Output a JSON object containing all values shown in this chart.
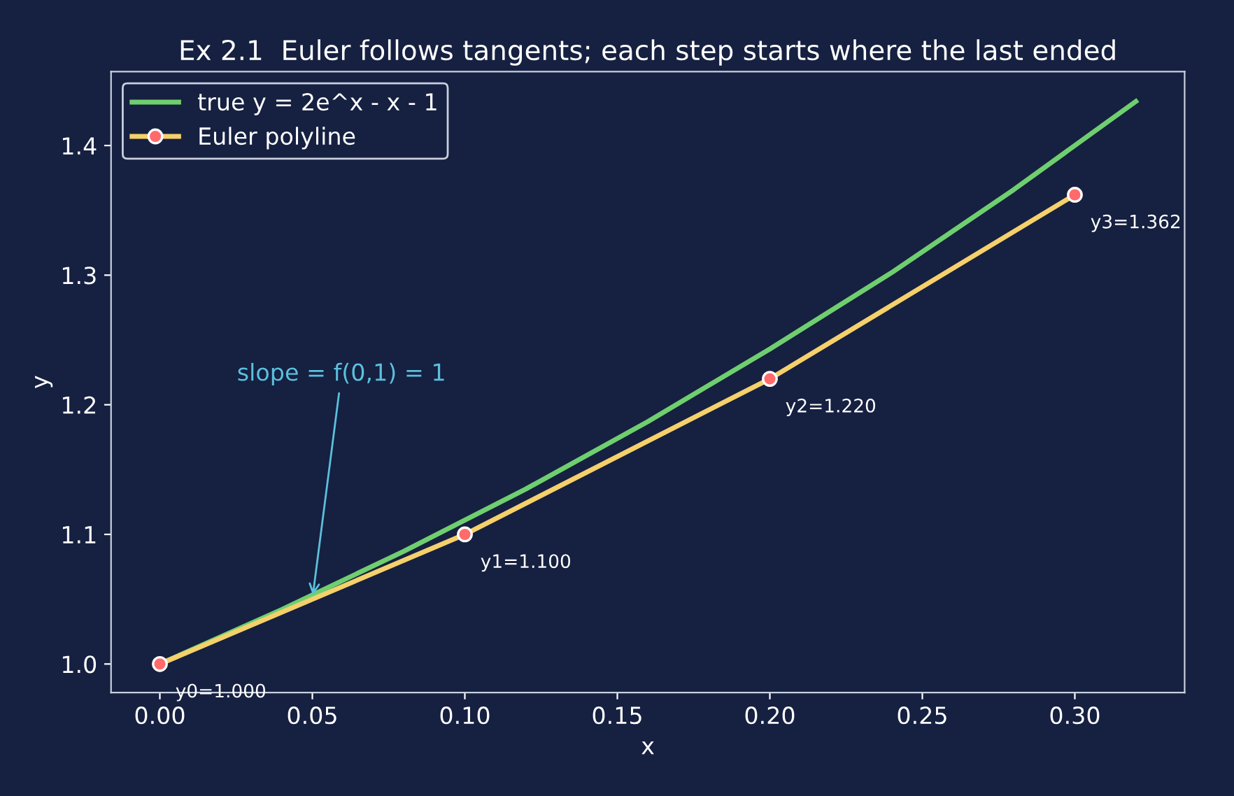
{
  "chart_data": {
    "type": "line",
    "title": "Ex 2.1  Euler follows tangents; each step starts where the last ended",
    "xlabel": "x",
    "ylabel": "y",
    "series": [
      {
        "name": "true y = 2e^x - x - 1",
        "color": "#6fcf6f",
        "marker": "none",
        "x": [
          0,
          0.04,
          0.08,
          0.12,
          0.16,
          0.2,
          0.24,
          0.28,
          0.32
        ],
        "values": [
          1.0,
          1.042,
          1.087,
          1.135,
          1.187,
          1.243,
          1.302,
          1.366,
          1.434
        ]
      },
      {
        "name": "Euler polyline",
        "color": "#f5d06b",
        "marker": "circle",
        "x": [
          0,
          0.1,
          0.2,
          0.3
        ],
        "values": [
          1.0,
          1.1,
          1.22,
          1.362
        ],
        "value_labels": [
          "y0=1.000",
          "y1=1.100",
          "y2=1.220",
          "y3=1.362"
        ]
      }
    ],
    "annotations": [
      {
        "text": "slope = f(0,1) = 1",
        "x": 0.05,
        "y": 1.05
      }
    ],
    "xlim": [
      -0.016,
      0.336
    ],
    "ylim": [
      0.978,
      1.457
    ],
    "xticks": [
      {
        "value": 0,
        "label": "0.00"
      },
      {
        "value": 0.05,
        "label": "0.05"
      },
      {
        "value": 0.1,
        "label": "0.10"
      },
      {
        "value": 0.15,
        "label": "0.15"
      },
      {
        "value": 0.2,
        "label": "0.20"
      },
      {
        "value": 0.25,
        "label": "0.25"
      },
      {
        "value": 0.3,
        "label": "0.30"
      }
    ],
    "yticks": [
      {
        "value": 1.0,
        "label": "1.0"
      },
      1.1,
      1.2,
      1.3,
      1.4
    ],
    "grid": false,
    "legend": "top left",
    "line_style": "solid"
  }
}
